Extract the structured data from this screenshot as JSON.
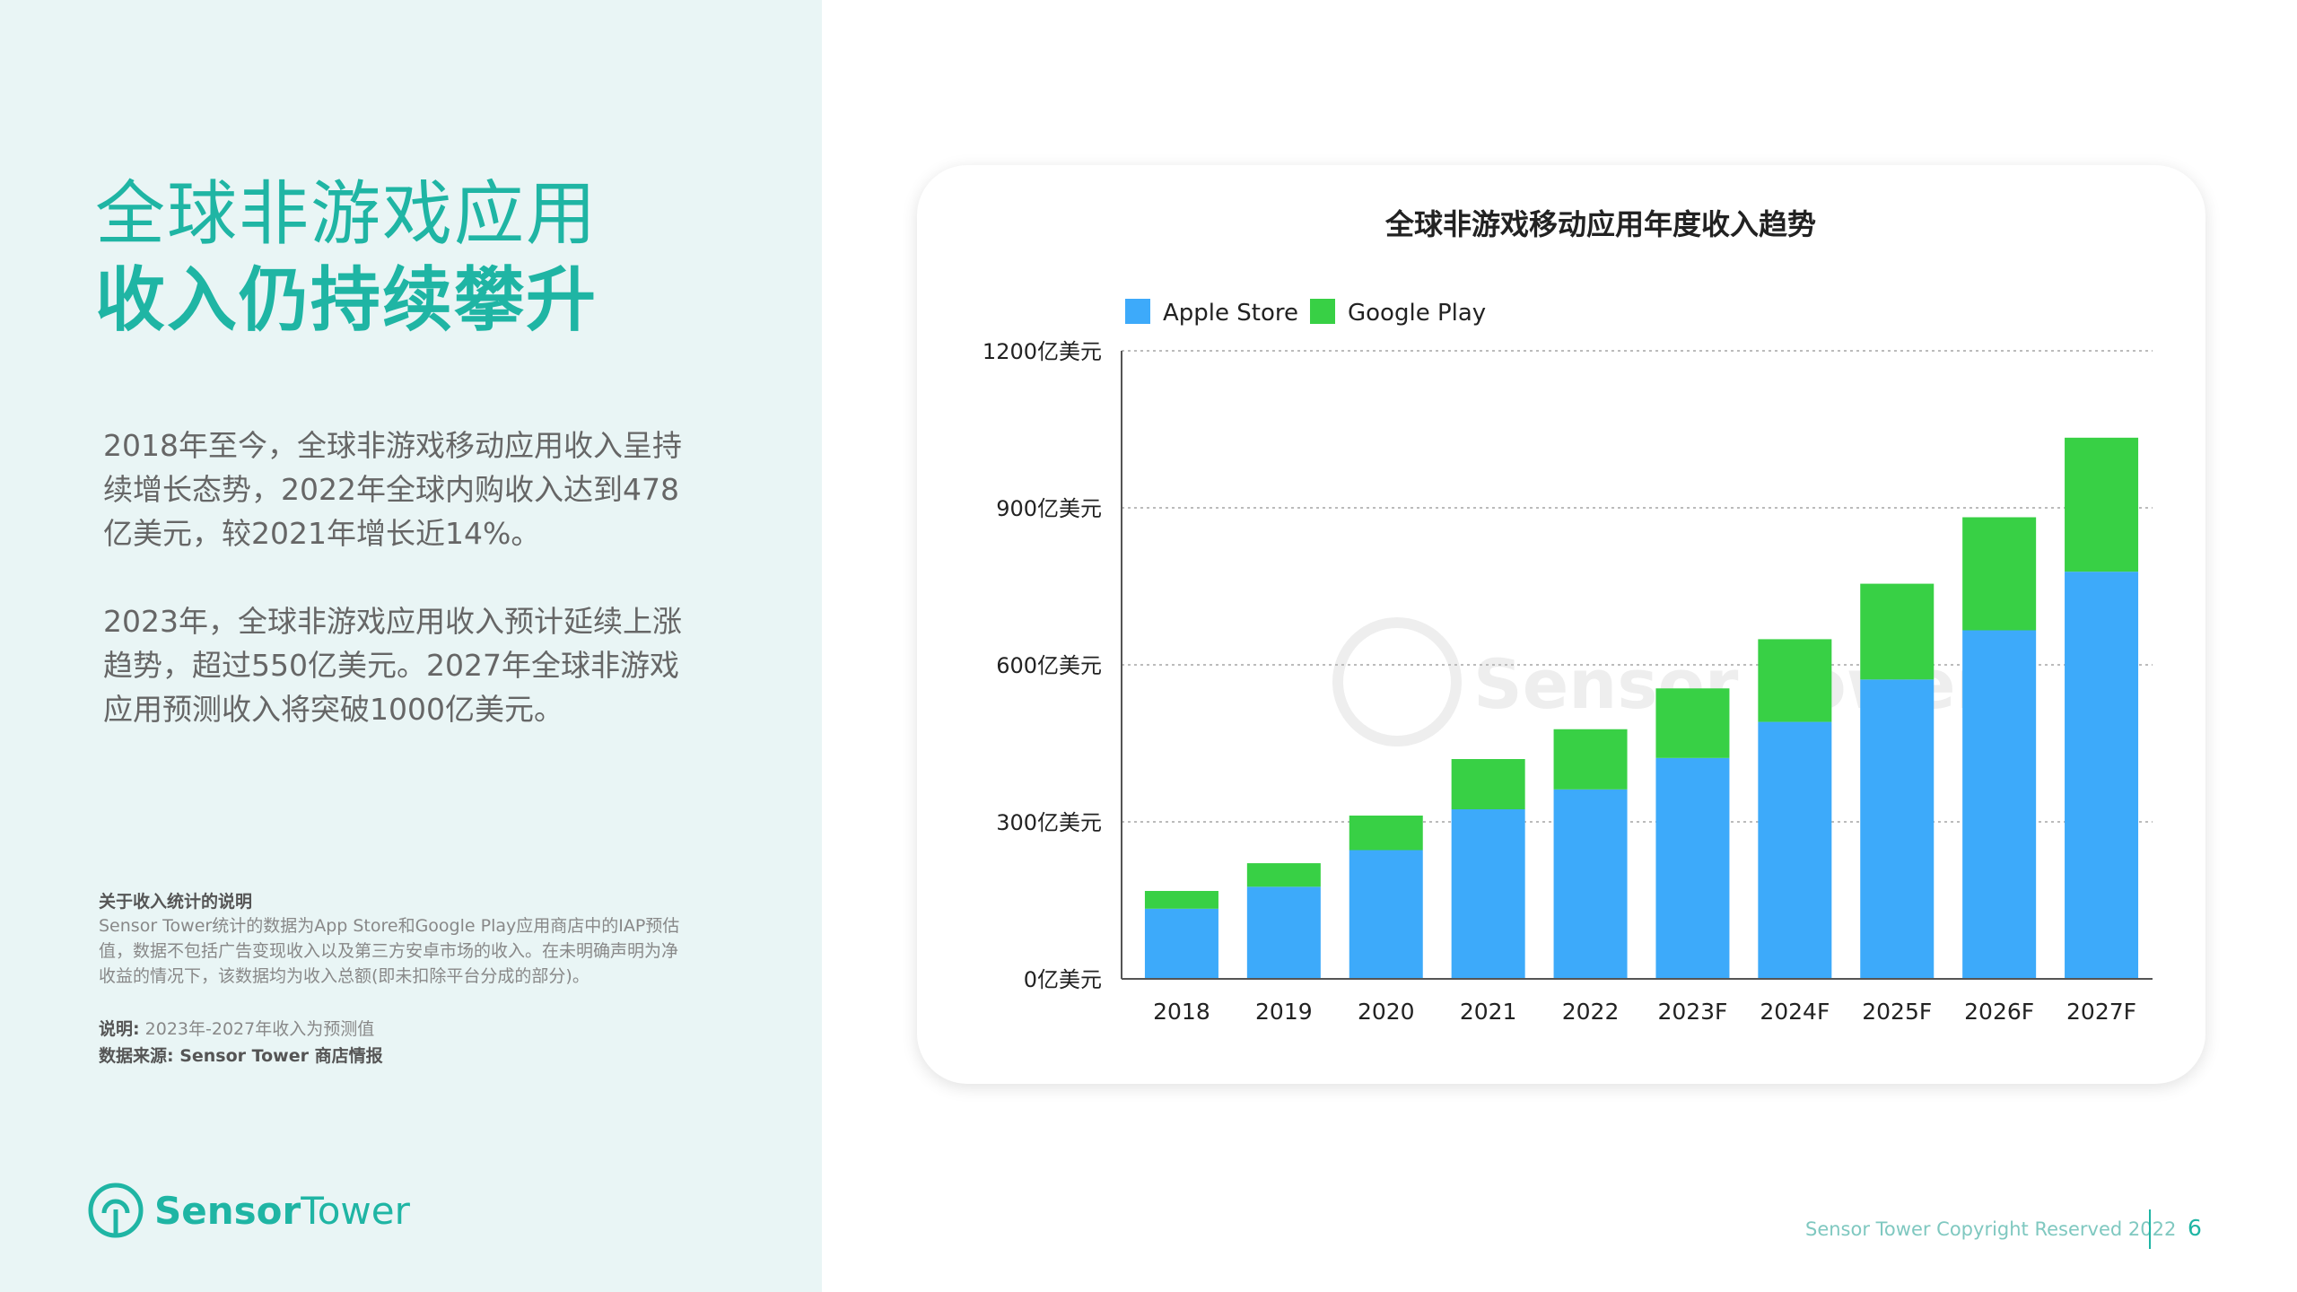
{
  "left": {
    "title_line1": "全球非游戏应用",
    "title_line2": "收入仍持续攀升",
    "paragraph1": "2018年至今，全球非游戏移动应用收入呈持续增长态势，2022年全球内购收入达到478亿美元，较2021年增长近14%。",
    "paragraph2": "2023年，全球非游戏应用收入预计延续上涨趋势，超过550亿美元。2027年全球非游戏应用预测收入将突破1000亿美元。",
    "note_heading": "关于收入统计的说明",
    "note_body": "Sensor Tower统计的数据为App Store和Google Play应用商店中的IAP预估值，数据不包括广告变现收入以及第三方安卓市场的收入。在未明确声明为净收益的情况下，该数据均为收入总额(即未扣除平台分成的部分)。",
    "explain_label": "说明:",
    "explain_text": "2023年-2027年收入为预测值",
    "source": "数据来源: Sensor Tower 商店情报",
    "logo_a": "Sensor",
    "logo_b": "Tower"
  },
  "footer": {
    "copyright": "Sensor Tower Copyright Reserved 2022",
    "page": "6"
  },
  "colors": {
    "accent": "#1fb5a4",
    "apple": "#3daafa",
    "google": "#38d045"
  },
  "chart_data": {
    "type": "bar",
    "stacked": true,
    "title": "全球非游戏移动应用年度收入趋势",
    "watermark": "Sensor Tower",
    "categories": [
      "2018",
      "2019",
      "2020",
      "2021",
      "2022",
      "2023F",
      "2024F",
      "2025F",
      "2026F",
      "2027F"
    ],
    "series": [
      {
        "name": "Apple Store",
        "color": "#3daafa",
        "values": [
          134,
          176,
          246,
          324,
          362,
          422,
          491,
          572,
          666,
          778
        ]
      },
      {
        "name": "Google Play",
        "color": "#38d045",
        "values": [
          34,
          45,
          66,
          96,
          115,
          133,
          158,
          183,
          216,
          256
        ]
      }
    ],
    "yticks": [
      0,
      300,
      600,
      900,
      1200
    ],
    "ytick_labels": [
      "0亿美元",
      "300亿美元",
      "600亿美元",
      "900亿美元",
      "1200亿美元"
    ],
    "ylim": [
      0,
      1200
    ],
    "grid": true,
    "legend": "top-left"
  }
}
